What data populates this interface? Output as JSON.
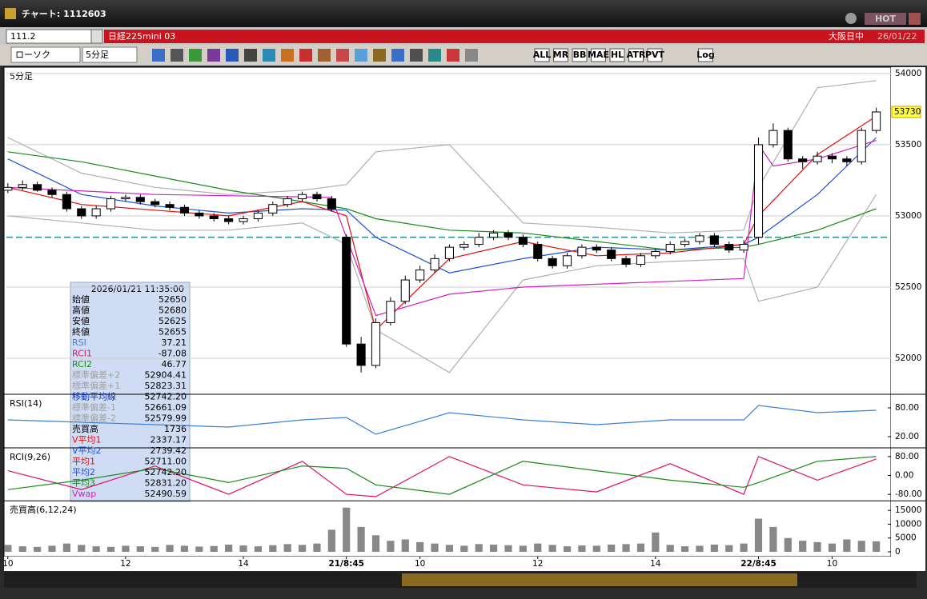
{
  "window": {
    "title": "チャート: 1112603",
    "hot": "HOT",
    "code": "111.2",
    "instrument": "日経225mini 03",
    "session": "大阪日中",
    "date": "26/01/22",
    "chart_style": "ローソク",
    "interval": "5分足",
    "tool_labels": [
      "ALL",
      "MR",
      "BB",
      "MAE",
      "HL",
      "ATR",
      "PVT",
      "Log"
    ]
  },
  "info_box": {
    "header": "2026/01/21  11:35:00",
    "rows": [
      [
        "始値",
        "52650"
      ],
      [
        "高値",
        "52680"
      ],
      [
        "安値",
        "52625"
      ],
      [
        "終値",
        "52655"
      ],
      [
        "RSI",
        "37.21"
      ],
      [
        "RCI1",
        "-87.08"
      ],
      [
        "RCI2",
        "46.77"
      ],
      [
        "標準偏差+2",
        "52904.41"
      ],
      [
        "標準偏差+1",
        "52823.31"
      ],
      [
        "移動平均線",
        "52742.20"
      ],
      [
        "標準偏差-1",
        "52661.09"
      ],
      [
        "標準偏差-2",
        "52579.99"
      ],
      [
        "売買高",
        "1736"
      ],
      [
        "V平均1",
        "2337.17"
      ],
      [
        "V平均2",
        "2739.42"
      ],
      [
        "平均1",
        "52711.00"
      ],
      [
        "平均2",
        "52742.20"
      ],
      [
        "平均3",
        "52831.20"
      ],
      [
        "Vwap",
        "52490.59"
      ]
    ]
  },
  "chart_data": [
    {
      "type": "candlestick",
      "title": "5分足",
      "xlim": [
        -0.1,
        60
      ],
      "ylim": [
        51750,
        54050
      ],
      "grid": true,
      "xticks": [
        {
          "value": 0,
          "label": "10"
        },
        {
          "value": 8,
          "label": "12"
        },
        {
          "value": 16,
          "label": "14"
        },
        {
          "value": 23,
          "label": "21/8:45"
        },
        {
          "value": 28,
          "label": "10"
        },
        {
          "value": 36,
          "label": "12"
        },
        {
          "value": 44,
          "label": "14"
        },
        {
          "value": 51,
          "label": "22/8:45"
        },
        {
          "value": 56,
          "label": "10"
        }
      ],
      "yticks": [
        52000,
        52500,
        53000,
        53500,
        54000
      ],
      "last_price": 53730,
      "reference_line": 52850,
      "up_color": "#ffffff",
      "down_color": "#000000",
      "open": [
        53180,
        53200,
        53220,
        53180,
        53150,
        53050,
        53000,
        53050,
        53120,
        53130,
        53100,
        53080,
        53060,
        53020,
        53000,
        52980,
        52960,
        52980,
        53020,
        53080,
        53120,
        53150,
        53120,
        52850,
        52100,
        51950,
        52250,
        52400,
        52550,
        52620,
        52700,
        52780,
        52800,
        52850,
        52880,
        52850,
        52800,
        52700,
        52650,
        52720,
        52780,
        52760,
        52700,
        52660,
        52720,
        52750,
        52800,
        52820,
        52860,
        52800,
        52760,
        52850,
        53500,
        53600,
        53400,
        53380,
        53420,
        53400,
        53380,
        53600
      ],
      "high": [
        53230,
        53250,
        53240,
        53200,
        53170,
        53070,
        53070,
        53140,
        53150,
        53150,
        53120,
        53100,
        53080,
        53040,
        53020,
        53000,
        53000,
        53040,
        53100,
        53140,
        53170,
        53170,
        53140,
        52870,
        52150,
        52280,
        52430,
        52580,
        52650,
        52730,
        52800,
        52820,
        52880,
        52900,
        52900,
        52870,
        52820,
        52720,
        52740,
        52800,
        52800,
        52780,
        52720,
        52740,
        52770,
        52820,
        52840,
        52880,
        52880,
        52820,
        52830,
        53550,
        53650,
        53620,
        53420,
        53450,
        53440,
        53420,
        53620,
        53760
      ],
      "low": [
        53160,
        53180,
        53170,
        53130,
        53030,
        52980,
        52980,
        53030,
        53100,
        53080,
        53060,
        53040,
        53000,
        52980,
        52960,
        52940,
        52940,
        52960,
        53000,
        53060,
        53100,
        53100,
        53030,
        52080,
        51900,
        51930,
        52230,
        52380,
        52530,
        52600,
        52680,
        52760,
        52780,
        52830,
        52830,
        52780,
        52680,
        52630,
        52630,
        52700,
        52740,
        52680,
        52640,
        52640,
        52700,
        52730,
        52780,
        52800,
        52780,
        52740,
        52740,
        52800,
        53480,
        53380,
        53330,
        53360,
        53370,
        53350,
        53360,
        53580
      ],
      "close": [
        53200,
        53220,
        53180,
        53150,
        53050,
        53000,
        53050,
        53120,
        53130,
        53100,
        53080,
        53060,
        53020,
        53000,
        52980,
        52960,
        52980,
        53020,
        53080,
        53120,
        53150,
        53120,
        53050,
        52100,
        51950,
        52250,
        52400,
        52550,
        52620,
        52700,
        52780,
        52800,
        52850,
        52880,
        52850,
        52800,
        52700,
        52650,
        52720,
        52780,
        52760,
        52700,
        52660,
        52720,
        52750,
        52800,
        52820,
        52860,
        52800,
        52760,
        52800,
        53500,
        53600,
        53400,
        53380,
        53420,
        53400,
        53380,
        53600,
        53730
      ],
      "series": [
        {
          "color": "#b0b0b0",
          "x": [
            0,
            5,
            10,
            15,
            20,
            23,
            25,
            30,
            35,
            40,
            45,
            50,
            51,
            55,
            59
          ],
          "values": [
            53550,
            53300,
            53200,
            53150,
            53180,
            53220,
            53450,
            53500,
            52950,
            52920,
            52880,
            52900,
            53200,
            53900,
            53950
          ]
        },
        {
          "color": "#b0b0b0",
          "x": [
            0,
            5,
            10,
            15,
            20,
            23,
            25,
            30,
            35,
            40,
            45,
            50,
            51,
            55,
            59
          ],
          "values": [
            53000,
            52950,
            52900,
            52900,
            52950,
            52800,
            52200,
            51900,
            52550,
            52650,
            52680,
            52700,
            52400,
            52500,
            53150
          ]
        },
        {
          "color": "#1f4fd8",
          "x": [
            0,
            5,
            10,
            15,
            20,
            23,
            25,
            30,
            35,
            40,
            45,
            50,
            51,
            55,
            59
          ],
          "values": [
            53400,
            53150,
            53070,
            53020,
            53050,
            53040,
            52850,
            52600,
            52700,
            52780,
            52760,
            52800,
            52850,
            53150,
            53550
          ]
        },
        {
          "color": "#1a8a1a",
          "x": [
            0,
            5,
            10,
            15,
            20,
            23,
            25,
            30,
            35,
            40,
            45,
            50,
            51,
            55,
            59
          ],
          "values": [
            53450,
            53380,
            53280,
            53180,
            53100,
            53050,
            52980,
            52900,
            52880,
            52820,
            52760,
            52780,
            52800,
            52900,
            53050
          ]
        },
        {
          "color": "#e01010",
          "x": [
            0,
            5,
            10,
            15,
            20,
            23,
            25,
            30,
            35,
            40,
            45,
            50,
            51,
            55,
            59
          ],
          "values": [
            53200,
            53080,
            53040,
            53000,
            53100,
            53000,
            52200,
            52700,
            52820,
            52720,
            52740,
            52800,
            53000,
            53430,
            53700
          ]
        },
        {
          "color": "#d020c0",
          "x": [
            0,
            10,
            22,
            23,
            25,
            30,
            35,
            40,
            45,
            50,
            51,
            52,
            55,
            59
          ],
          "values": [
            53200,
            53150,
            53130,
            52850,
            52300,
            52450,
            52500,
            52520,
            52540,
            52560,
            53500,
            53350,
            53400,
            53530
          ]
        }
      ]
    },
    {
      "type": "line",
      "title": "RSI(14)",
      "xlim": [
        -0.1,
        60
      ],
      "ylim": [
        0,
        100
      ],
      "grid": false,
      "yticks": [
        {
          "value": 80,
          "label": "80.00"
        },
        {
          "value": 20,
          "label": "20.00"
        }
      ],
      "series": [
        {
          "color": "#3a7fd8",
          "x": [
            0,
            5,
            10,
            15,
            20,
            23,
            25,
            30,
            35,
            40,
            45,
            50,
            51,
            55,
            59
          ],
          "values": [
            55,
            50,
            45,
            40,
            55,
            60,
            25,
            70,
            55,
            45,
            55,
            55,
            85,
            70,
            75
          ]
        }
      ]
    },
    {
      "type": "line",
      "title": "RCI(9,26)",
      "xlim": [
        -0.1,
        60
      ],
      "ylim": [
        -100,
        100
      ],
      "grid": false,
      "yticks": [
        {
          "value": 80,
          "label": "80.00"
        },
        {
          "value": 0,
          "label": "0.00"
        },
        {
          "value": -80,
          "label": "-80.00"
        }
      ],
      "series": [
        {
          "color": "#e0106a",
          "x": [
            0,
            5,
            10,
            15,
            20,
            23,
            25,
            30,
            35,
            40,
            45,
            50,
            51,
            55,
            59
          ],
          "values": [
            20,
            -60,
            40,
            -80,
            60,
            -80,
            -90,
            80,
            -40,
            -70,
            50,
            -80,
            80,
            -20,
            70
          ]
        },
        {
          "color": "#1a8a1a",
          "x": [
            0,
            5,
            10,
            15,
            20,
            23,
            25,
            30,
            35,
            40,
            45,
            50,
            51,
            55,
            59
          ],
          "values": [
            -60,
            -20,
            30,
            -30,
            40,
            30,
            -40,
            -80,
            60,
            20,
            -20,
            -50,
            -30,
            60,
            80
          ]
        }
      ]
    },
    {
      "type": "bar",
      "title": "売買高(6,12,24)",
      "xlim": [
        -0.1,
        60
      ],
      "ylim": [
        0,
        17000
      ],
      "grid": false,
      "color": "#888888",
      "yticks": [
        15000,
        10000,
        5000,
        0
      ],
      "values": [
        2500,
        2000,
        1800,
        2200,
        3000,
        2500,
        2000,
        1800,
        2200,
        2000,
        1800,
        2500,
        2200,
        1900,
        2100,
        2600,
        2300,
        2000,
        2400,
        2800,
        2500,
        3000,
        8000,
        16000,
        9000,
        6000,
        4000,
        4500,
        3500,
        3000,
        2500,
        2200,
        2800,
        2600,
        2400,
        2200,
        3000,
        2500,
        2000,
        2300,
        2200,
        2600,
        2800,
        3000,
        7000,
        2500,
        2000,
        2200,
        2600,
        2400,
        3000,
        12000,
        9000,
        5000,
        4000,
        3500,
        3000,
        4500,
        4000,
        3800
      ]
    }
  ]
}
